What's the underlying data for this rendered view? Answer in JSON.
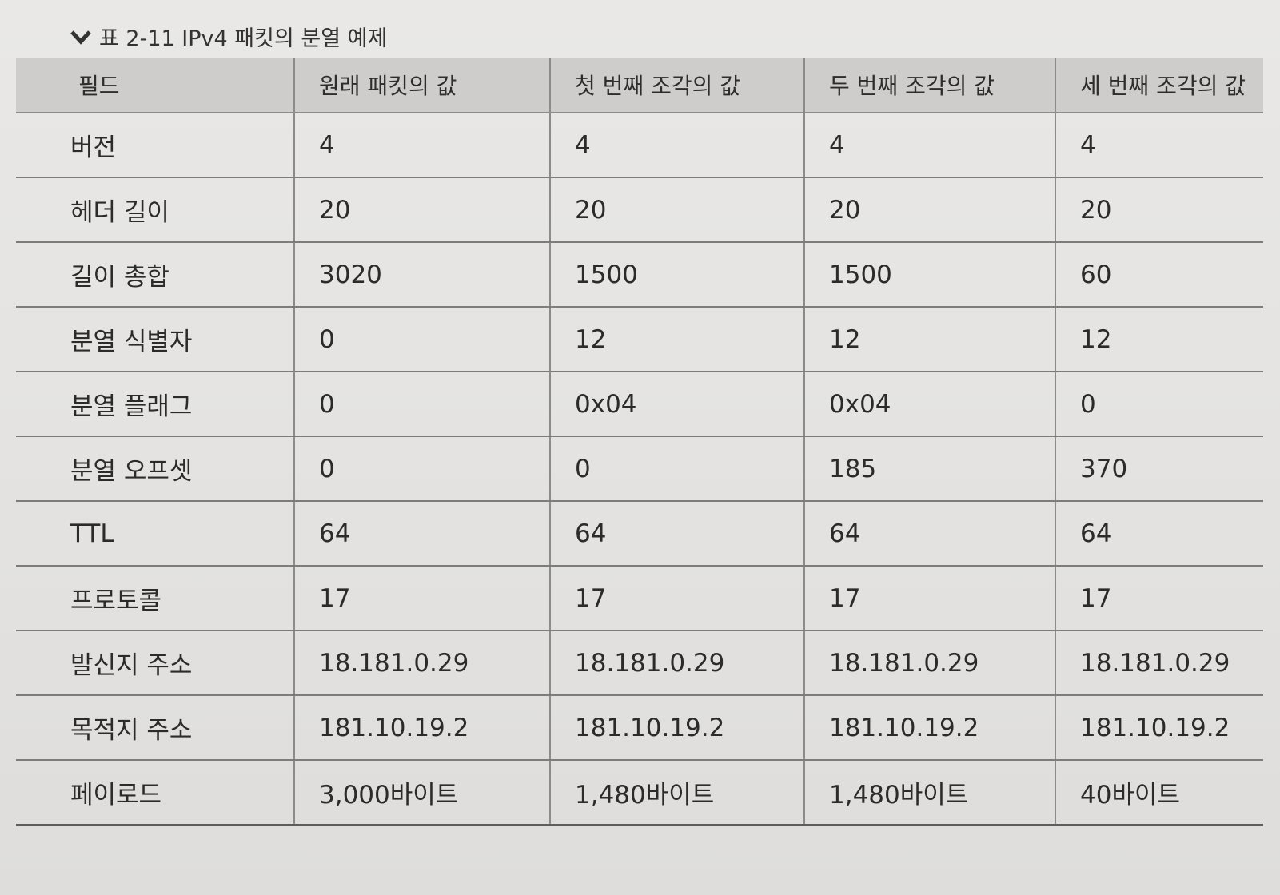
{
  "caption": {
    "icon": "chevron-down-icon",
    "text": "표 2-11 IPv4 패킷의 분열 예제"
  },
  "table": {
    "headers": [
      "필드",
      "원래 패킷의 값",
      "첫 번째 조각의 값",
      "두 번째 조각의 값",
      "세 번째 조각의 값"
    ],
    "rows": [
      [
        "버전",
        "4",
        "4",
        "4",
        "4"
      ],
      [
        "헤더 길이",
        "20",
        "20",
        "20",
        "20"
      ],
      [
        "길이 총합",
        "3020",
        "1500",
        "1500",
        "60"
      ],
      [
        "분열 식별자",
        "0",
        "12",
        "12",
        "12"
      ],
      [
        "분열 플래그",
        "0",
        "0x04",
        "0x04",
        "0"
      ],
      [
        "분열 오프셋",
        "0",
        "0",
        "185",
        "370"
      ],
      [
        "TTL",
        "64",
        "64",
        "64",
        "64"
      ],
      [
        "프로토콜",
        "17",
        "17",
        "17",
        "17"
      ],
      [
        "발신지 주소",
        "18.181.0.29",
        "18.181.0.29",
        "18.181.0.29",
        "18.181.0.29"
      ],
      [
        "목적지 주소",
        "181.10.19.2",
        "181.10.19.2",
        "181.10.19.2",
        "181.10.19.2"
      ],
      [
        "페이로드",
        "3,000바이트",
        "1,480바이트",
        "1,480바이트",
        "40바이트"
      ]
    ]
  }
}
